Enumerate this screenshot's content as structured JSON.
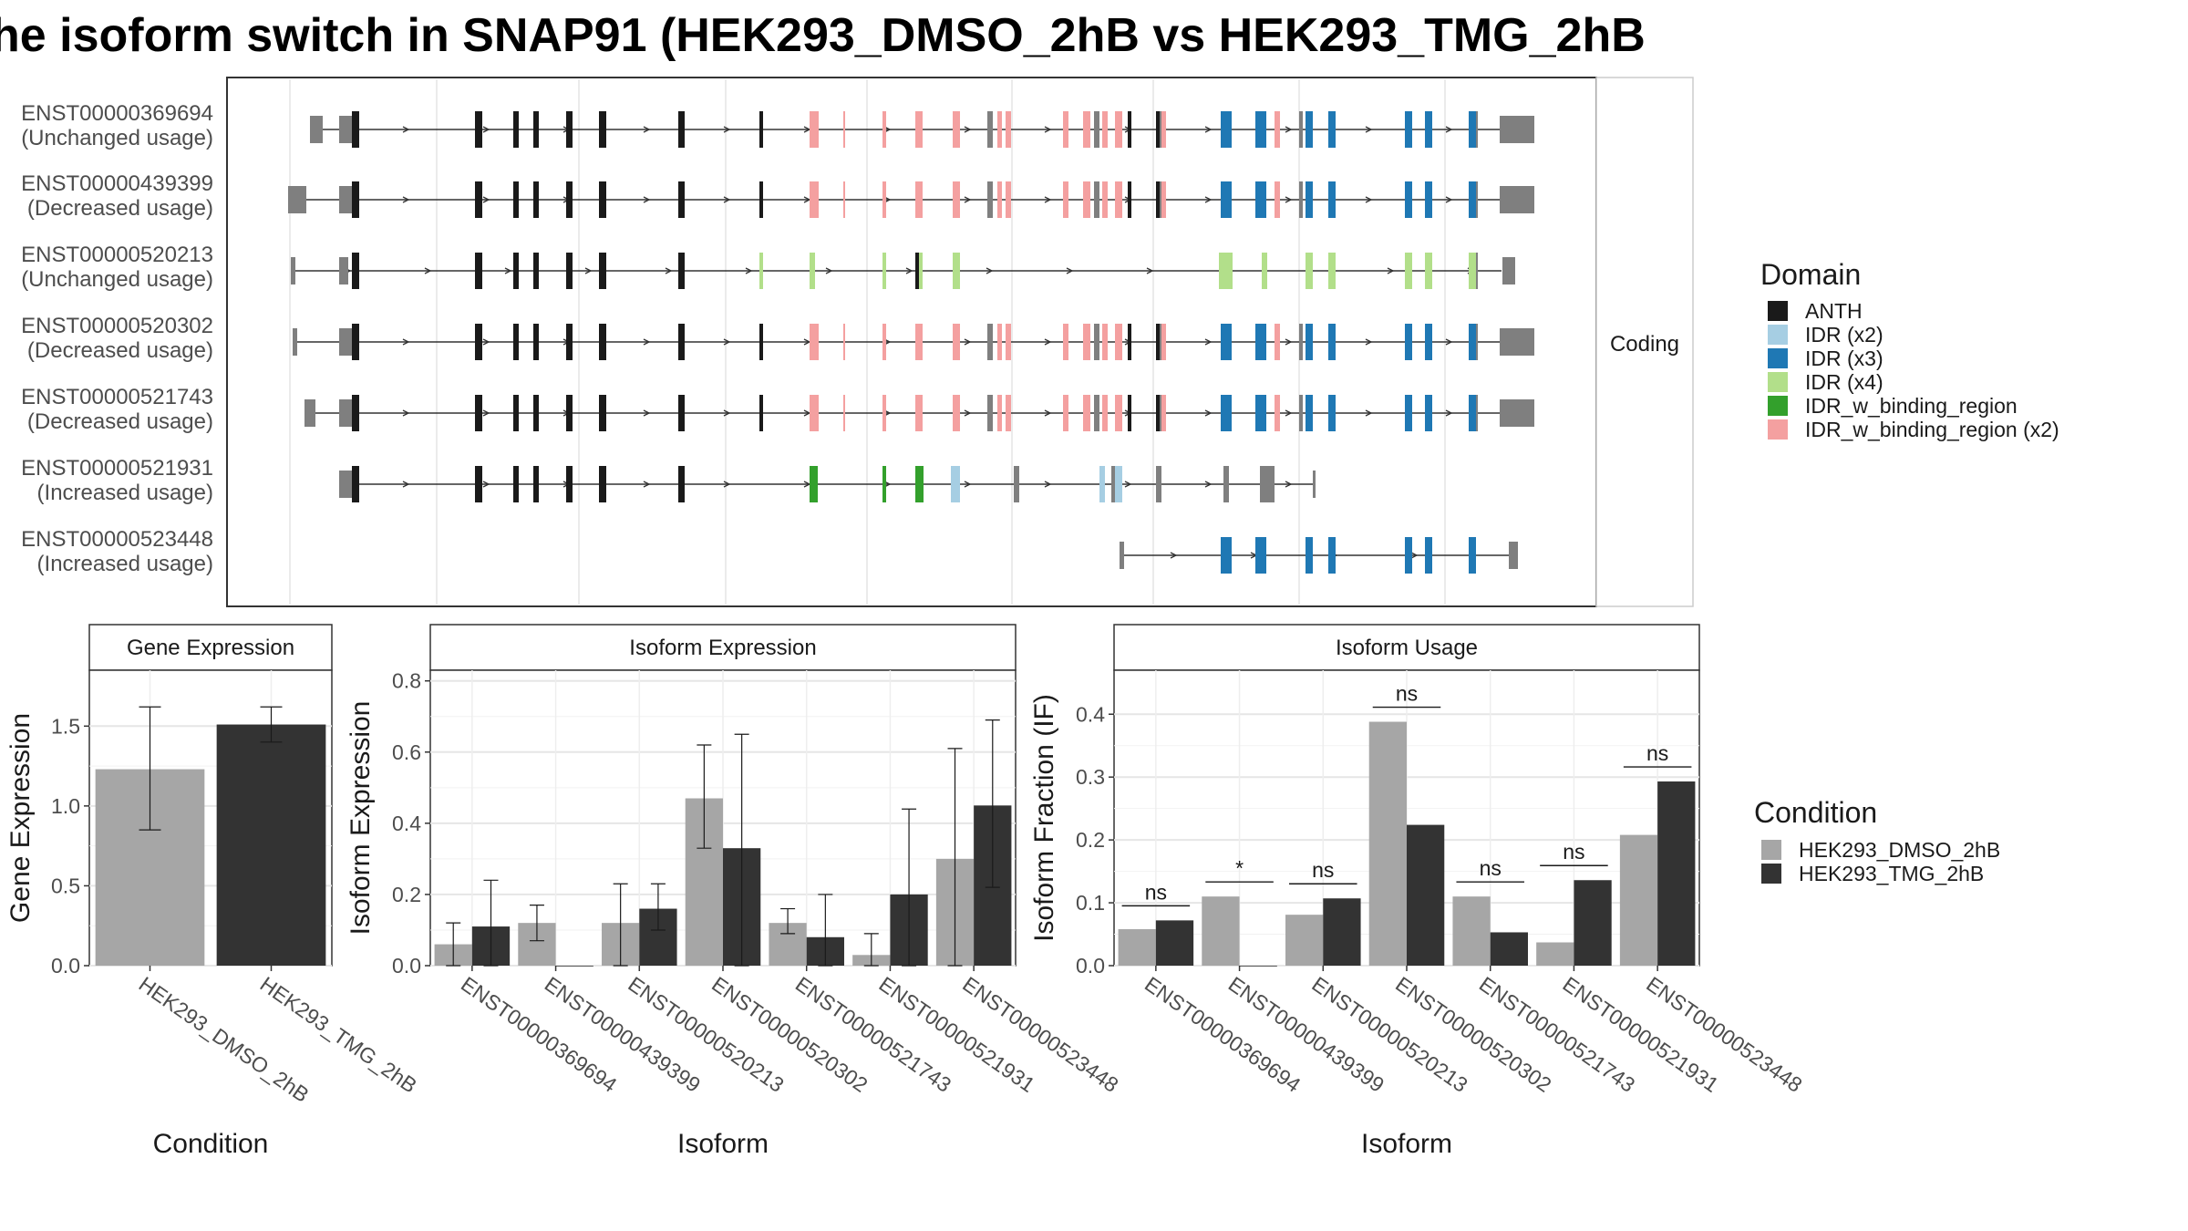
{
  "title": "he isoform switch in SNAP91 (HEK293_DMSO_2hB vs HEK293_TMG_2hB",
  "transcripts": [
    {
      "id": "ENST00000369694",
      "usage": "(Unchanged usage)"
    },
    {
      "id": "ENST00000439399",
      "usage": "(Decreased usage)"
    },
    {
      "id": "ENST00000520213",
      "usage": "(Unchanged usage)"
    },
    {
      "id": "ENST00000520302",
      "usage": "(Decreased usage)"
    },
    {
      "id": "ENST00000521743",
      "usage": "(Decreased usage)"
    },
    {
      "id": "ENST00000521931",
      "usage": "(Increased usage)"
    },
    {
      "id": "ENST00000523448",
      "usage": "(Increased usage)"
    }
  ],
  "strip_label": "Coding",
  "domain_legend": {
    "title": "Domain",
    "items": [
      {
        "label": "ANTH",
        "color": "#1a1a1a"
      },
      {
        "label": "IDR (x2)",
        "color": "#a6cee3"
      },
      {
        "label": "IDR (x3)",
        "color": "#1f78b4"
      },
      {
        "label": "IDR (x4)",
        "color": "#b2df8a"
      },
      {
        "label": "IDR_w_binding_region",
        "color": "#33a02c"
      },
      {
        "label": "IDR_w_binding_region (x2)",
        "color": "#f4a0a0"
      }
    ]
  },
  "condition_legend": {
    "title": "Condition",
    "items": [
      {
        "label": "HEK293_DMSO_2hB",
        "color": "#a6a6a6"
      },
      {
        "label": "HEK293_TMG_2hB",
        "color": "#333333"
      }
    ]
  },
  "chart_data": [
    {
      "type": "bar",
      "title": "Gene Expression",
      "xlabel": "Condition",
      "ylabel": "Gene Expression",
      "categories": [
        "HEK293_DMSO_2hB",
        "HEK293_TMG_2hB"
      ],
      "values": [
        1.23,
        1.51
      ],
      "error_low": [
        0.85,
        1.4
      ],
      "error_high": [
        1.62,
        1.62
      ],
      "ylim": [
        0,
        1.85
      ],
      "yticks": [
        "0.0",
        "0.5",
        "1.0",
        "1.5"
      ]
    },
    {
      "type": "bar",
      "title": "Isoform Expression",
      "xlabel": "Isoform",
      "ylabel": "Isoform Expression",
      "categories": [
        "ENST00000369694",
        "ENST00000439399",
        "ENST00000520213",
        "ENST00000520302",
        "ENST00000521743",
        "ENST00000521931",
        "ENST00000523448"
      ],
      "series": [
        {
          "name": "HEK293_DMSO_2hB",
          "values": [
            0.06,
            0.12,
            0.12,
            0.47,
            0.12,
            0.03,
            0.3
          ],
          "error_low": [
            0.0,
            0.07,
            0.0,
            0.33,
            0.09,
            0.0,
            0.0
          ],
          "error_high": [
            0.12,
            0.17,
            0.23,
            0.62,
            0.16,
            0.09,
            0.61
          ]
        },
        {
          "name": "HEK293_TMG_2hB",
          "values": [
            0.11,
            0.0,
            0.16,
            0.33,
            0.08,
            0.2,
            0.45
          ],
          "error_low": [
            0.0,
            0.0,
            0.1,
            0.0,
            0.0,
            0.0,
            0.22
          ],
          "error_high": [
            0.24,
            0.0,
            0.23,
            0.65,
            0.2,
            0.44,
            0.69
          ]
        }
      ],
      "ylim": [
        0,
        0.83
      ],
      "yticks": [
        "0.0",
        "0.2",
        "0.4",
        "0.6",
        "0.8"
      ]
    },
    {
      "type": "bar",
      "title": "Isoform Usage",
      "xlabel": "Isoform",
      "ylabel": "Isoform Fraction (IF)",
      "categories": [
        "ENST00000369694",
        "ENST00000439399",
        "ENST00000520213",
        "ENST00000520302",
        "ENST00000521743",
        "ENST00000521931",
        "ENST00000523448"
      ],
      "series": [
        {
          "name": "HEK293_DMSO_2hB",
          "values": [
            0.058,
            0.11,
            0.081,
            0.388,
            0.11,
            0.037,
            0.208
          ]
        },
        {
          "name": "HEK293_TMG_2hB",
          "values": [
            0.072,
            0.0,
            0.107,
            0.224,
            0.053,
            0.136,
            0.293
          ]
        }
      ],
      "significance": [
        "ns",
        "*",
        "ns",
        "ns",
        "ns",
        "ns",
        "ns"
      ],
      "ylim": [
        0,
        0.47
      ],
      "yticks": [
        "0.0",
        "0.1",
        "0.2",
        "0.3",
        "0.4"
      ]
    }
  ]
}
